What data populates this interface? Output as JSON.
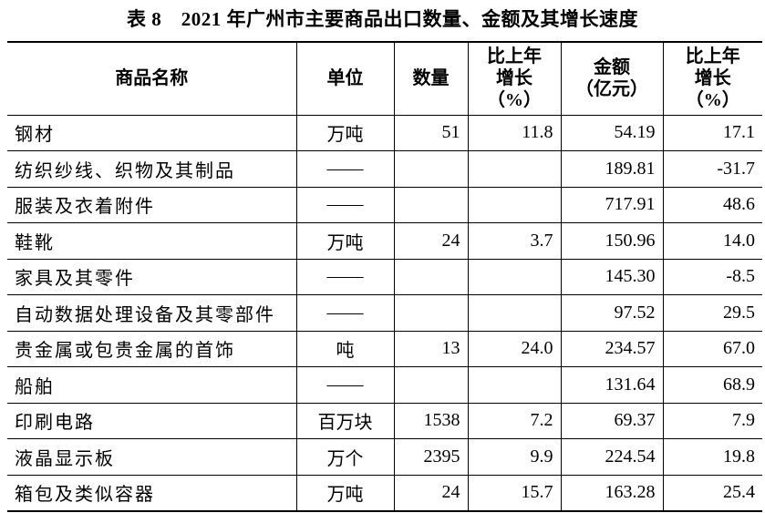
{
  "header": {
    "title": "表 8　2021 年广州市主要商品出口数量、金额及其增长速度"
  },
  "table": {
    "columns": [
      [
        "商品名称"
      ],
      [
        "单位"
      ],
      [
        "数量"
      ],
      [
        "比上年",
        "增长",
        "（%）"
      ],
      [
        "金额",
        "（亿元）"
      ],
      [
        "比上年",
        "增长",
        "（%）"
      ]
    ],
    "rows": [
      [
        "钢材",
        "万吨",
        "51",
        "11.8",
        "54.19",
        "17.1"
      ],
      [
        "纺织纱线、织物及其制品",
        "——",
        null,
        null,
        "189.81",
        "-31.7"
      ],
      [
        "服装及衣着附件",
        "——",
        null,
        null,
        "717.91",
        "48.6"
      ],
      [
        "鞋靴",
        "万吨",
        "24",
        "3.7",
        "150.96",
        "14.0"
      ],
      [
        "家具及其零件",
        "——",
        null,
        null,
        "145.30",
        "-8.5"
      ],
      [
        "自动数据处理设备及其零部件",
        "——",
        null,
        null,
        "97.52",
        "29.5"
      ],
      [
        "贵金属或包贵金属的首饰",
        "吨",
        "13",
        "24.0",
        "234.57",
        "67.0"
      ],
      [
        "船舶",
        "——",
        null,
        null,
        "131.64",
        "68.9"
      ],
      [
        "印刷电路",
        "百万块",
        "1538",
        "7.2",
        "69.37",
        "7.9"
      ],
      [
        "液晶显示板",
        "万个",
        "2395",
        "9.9",
        "224.54",
        "19.8"
      ],
      [
        "箱包及类似容器",
        "万吨",
        "24",
        "15.7",
        "163.28",
        "25.4"
      ]
    ]
  }
}
